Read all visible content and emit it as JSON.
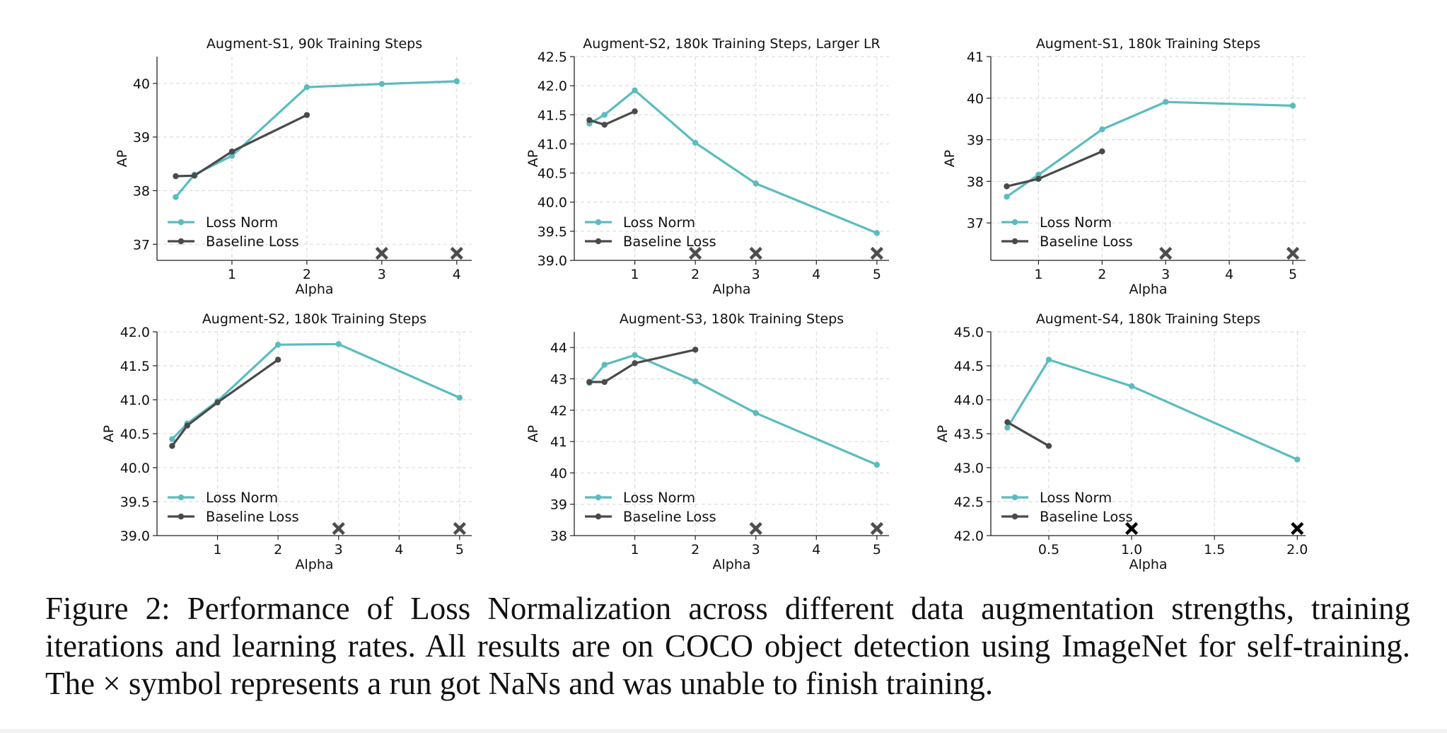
{
  "chart_data": [
    {
      "type": "line",
      "title": "Augment-S1, 90k Training Steps",
      "xlabel": "Alpha",
      "ylabel": "AP",
      "xlim": [
        0.0,
        4.2
      ],
      "ylim": [
        36.7,
        40.5
      ],
      "xticks": [
        1,
        2,
        3,
        4
      ],
      "xtick_labels": [
        "1",
        "2",
        "3",
        "4"
      ],
      "yticks": [
        37,
        38,
        39,
        40
      ],
      "ytick_labels": [
        "37",
        "38",
        "39",
        "40"
      ],
      "grid": true,
      "legend": "lower-left",
      "series": [
        {
          "name": "Loss Norm",
          "color": "#5bbcbf",
          "x": [
            0.25,
            0.5,
            1,
            2,
            3,
            4
          ],
          "y": [
            37.88,
            38.3,
            38.65,
            39.93,
            39.99,
            40.04
          ]
        },
        {
          "name": "Baseline Loss",
          "color": "#4a4a4a",
          "x": [
            0.25,
            0.5,
            1,
            2
          ],
          "y": [
            38.27,
            38.28,
            38.73,
            39.41
          ]
        }
      ],
      "nan_markers": [
        3,
        4
      ]
    },
    {
      "type": "line",
      "title": "Augment-S2, 180k Training Steps, Larger LR",
      "xlabel": "Alpha",
      "ylabel": "AP",
      "xlim": [
        0.0,
        5.2
      ],
      "ylim": [
        39.0,
        42.5
      ],
      "xticks": [
        1,
        2,
        3,
        4,
        5
      ],
      "xtick_labels": [
        "1",
        "2",
        "3",
        "4",
        "5"
      ],
      "yticks": [
        39.0,
        39.5,
        40.0,
        40.5,
        41.0,
        41.5,
        42.0,
        42.5
      ],
      "ytick_labels": [
        "39.0",
        "39.5",
        "40.0",
        "40.5",
        "41.0",
        "41.5",
        "42.0",
        "42.5"
      ],
      "grid": true,
      "legend": "lower-left",
      "series": [
        {
          "name": "Loss Norm",
          "color": "#5bbcbf",
          "x": [
            0.25,
            0.5,
            1,
            2,
            3,
            5
          ],
          "y": [
            41.35,
            41.5,
            41.92,
            41.02,
            40.32,
            39.47
          ]
        },
        {
          "name": "Baseline Loss",
          "color": "#4a4a4a",
          "x": [
            0.25,
            0.5,
            1
          ],
          "y": [
            41.41,
            41.33,
            41.56
          ]
        }
      ],
      "nan_markers": [
        2,
        3,
        5
      ]
    },
    {
      "type": "line",
      "title": "Augment-S1, 180k Training Steps",
      "xlabel": "Alpha",
      "ylabel": "AP",
      "xlim": [
        0.25,
        5.2
      ],
      "ylim": [
        36.1,
        41.0
      ],
      "xticks": [
        1,
        2,
        3,
        4,
        5
      ],
      "xtick_labels": [
        "1",
        "2",
        "3",
        "4",
        "5"
      ],
      "yticks": [
        37,
        38,
        39,
        40,
        41
      ],
      "ytick_labels": [
        "37",
        "38",
        "39",
        "40",
        "41"
      ],
      "grid": true,
      "legend": "lower-left",
      "series": [
        {
          "name": "Loss Norm",
          "color": "#5bbcbf",
          "x": [
            0.5,
            1,
            2,
            3,
            5
          ],
          "y": [
            37.63,
            38.16,
            39.25,
            39.91,
            39.82
          ]
        },
        {
          "name": "Baseline Loss",
          "color": "#4a4a4a",
          "x": [
            0.5,
            1,
            2
          ],
          "y": [
            37.88,
            38.06,
            38.72
          ]
        }
      ],
      "nan_markers": [
        3,
        5
      ]
    },
    {
      "type": "line",
      "title": "Augment-S2, 180k Training Steps",
      "xlabel": "Alpha",
      "ylabel": "AP",
      "xlim": [
        0.0,
        5.2
      ],
      "ylim": [
        39.0,
        42.0
      ],
      "xticks": [
        1,
        2,
        3,
        4,
        5
      ],
      "xtick_labels": [
        "1",
        "2",
        "3",
        "4",
        "5"
      ],
      "yticks": [
        39.0,
        39.5,
        40.0,
        40.5,
        41.0,
        41.5,
        42.0
      ],
      "ytick_labels": [
        "39.0",
        "39.5",
        "40.0",
        "40.5",
        "41.0",
        "41.5",
        "42.0"
      ],
      "grid": true,
      "legend": "lower-left",
      "series": [
        {
          "name": "Loss Norm",
          "color": "#5bbcbf",
          "x": [
            0.25,
            0.5,
            1,
            2,
            3,
            5
          ],
          "y": [
            40.42,
            40.65,
            40.98,
            41.81,
            41.82,
            41.03
          ]
        },
        {
          "name": "Baseline Loss",
          "color": "#4a4a4a",
          "x": [
            0.25,
            0.5,
            1,
            2
          ],
          "y": [
            40.32,
            40.62,
            40.96,
            41.59
          ]
        }
      ],
      "nan_markers": [
        3,
        5
      ]
    },
    {
      "type": "line",
      "title": "Augment-S3, 180k Training Steps",
      "xlabel": "Alpha",
      "ylabel": "AP",
      "xlim": [
        0.0,
        5.2
      ],
      "ylim": [
        38.0,
        44.5
      ],
      "xticks": [
        1,
        2,
        3,
        4,
        5
      ],
      "xtick_labels": [
        "1",
        "2",
        "3",
        "4",
        "5"
      ],
      "yticks": [
        38,
        39,
        40,
        41,
        42,
        43,
        44
      ],
      "ytick_labels": [
        "38",
        "39",
        "40",
        "41",
        "42",
        "43",
        "44"
      ],
      "grid": true,
      "legend": "lower-left",
      "series": [
        {
          "name": "Loss Norm",
          "color": "#5bbcbf",
          "x": [
            0.25,
            0.5,
            1,
            2,
            3,
            5
          ],
          "y": [
            42.87,
            43.45,
            43.76,
            42.92,
            41.91,
            40.26
          ]
        },
        {
          "name": "Baseline Loss",
          "color": "#4a4a4a",
          "x": [
            0.25,
            0.5,
            1,
            2
          ],
          "y": [
            42.9,
            42.9,
            43.5,
            43.93
          ]
        }
      ],
      "nan_markers": [
        3,
        5
      ]
    },
    {
      "type": "line",
      "title": "Augment-S4, 180k Training Steps",
      "xlabel": "Alpha",
      "ylabel": "AP",
      "xlim": [
        0.15,
        2.05
      ],
      "ylim": [
        42.0,
        45.0
      ],
      "xticks": [
        0.5,
        1.0,
        1.5,
        2.0
      ],
      "xtick_labels": [
        "0.5",
        "1.0",
        "1.5",
        "2.0"
      ],
      "yticks": [
        42.0,
        42.5,
        43.0,
        43.5,
        44.0,
        44.5,
        45.0
      ],
      "ytick_labels": [
        "42.0",
        "42.5",
        "43.0",
        "43.5",
        "44.0",
        "44.5",
        "45.0"
      ],
      "grid": true,
      "legend": "lower-left",
      "series": [
        {
          "name": "Loss Norm",
          "color": "#5bbcbf",
          "x": [
            0.25,
            0.5,
            1.0,
            2.0
          ],
          "y": [
            43.59,
            44.59,
            44.2,
            43.12
          ]
        },
        {
          "name": "Baseline Loss",
          "color": "#4a4a4a",
          "x": [
            0.25,
            0.5
          ],
          "y": [
            43.67,
            43.32
          ]
        }
      ],
      "nan_markers": [
        1.0,
        2.0
      ],
      "nan_marker_color": "#000000"
    }
  ],
  "colors": {
    "loss_norm": "#5bbcbf",
    "baseline": "#4a4a4a",
    "nan_marker": "#4d4d4d"
  },
  "icons": {
    "nan_marker": "x-mark-icon"
  },
  "caption": "Figure 2: Performance of Loss Normalization across different data augmentation strengths, training iterations and learning rates.  All results are on COCO object detection using ImageNet for self-training. The × symbol represents a run got NaNs and was unable to finish training."
}
